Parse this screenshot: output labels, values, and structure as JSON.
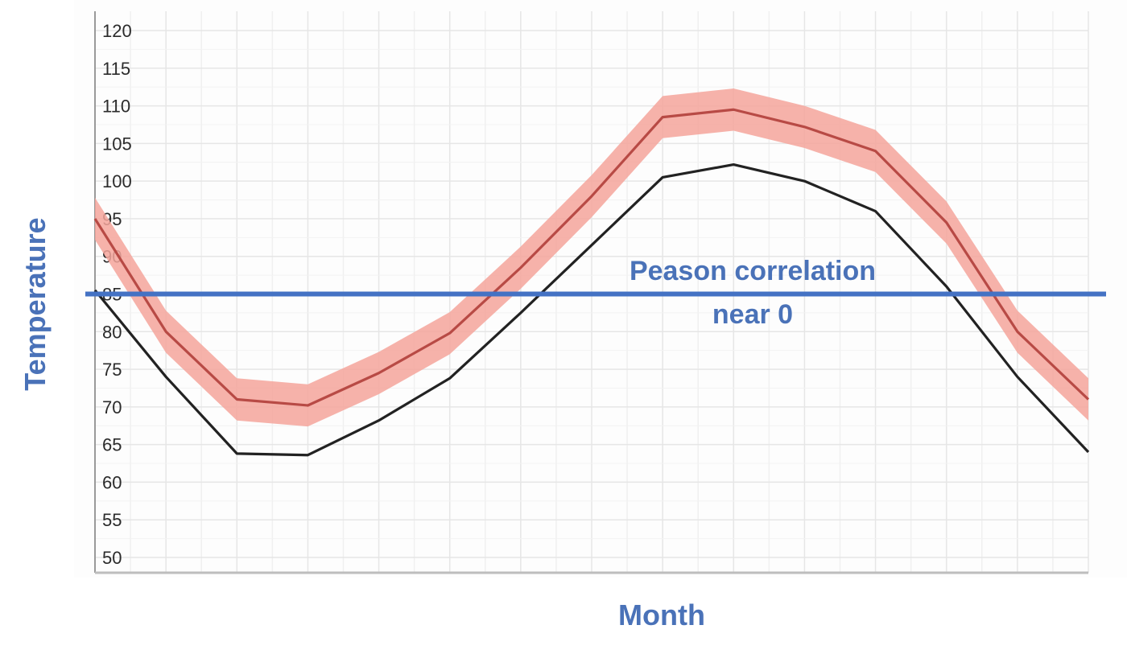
{
  "chart_data": {
    "type": "line",
    "xlabel": "Month",
    "ylabel": "Temperature",
    "ylim": [
      50,
      120
    ],
    "yticks": [
      50,
      55,
      60,
      65,
      70,
      75,
      80,
      85,
      90,
      95,
      100,
      105,
      110,
      115,
      120
    ],
    "grid": true,
    "x": [
      0,
      1,
      2,
      3,
      4,
      5,
      6,
      7,
      8,
      9,
      10,
      11,
      12,
      13,
      14
    ],
    "series": [
      {
        "color": "#b84a45",
        "values": [
          95,
          80,
          71,
          70.2,
          74.5,
          79.8,
          88.5,
          98,
          108.5,
          109.5,
          107.2,
          104,
          94.5,
          80,
          71
        ],
        "band_halfwidth": 2.8,
        "band_color": "#f4a59b"
      },
      {
        "color": "#222222",
        "values": [
          85.5,
          74,
          63.8,
          63.6,
          68.2,
          73.8,
          82.5,
          91.5,
          100.5,
          102.2,
          100,
          96,
          86,
          74,
          64
        ]
      }
    ],
    "reference_line": {
      "y": 85,
      "color": "#4472c4"
    },
    "annotations": [
      "Peason correlation",
      "near 0"
    ]
  }
}
